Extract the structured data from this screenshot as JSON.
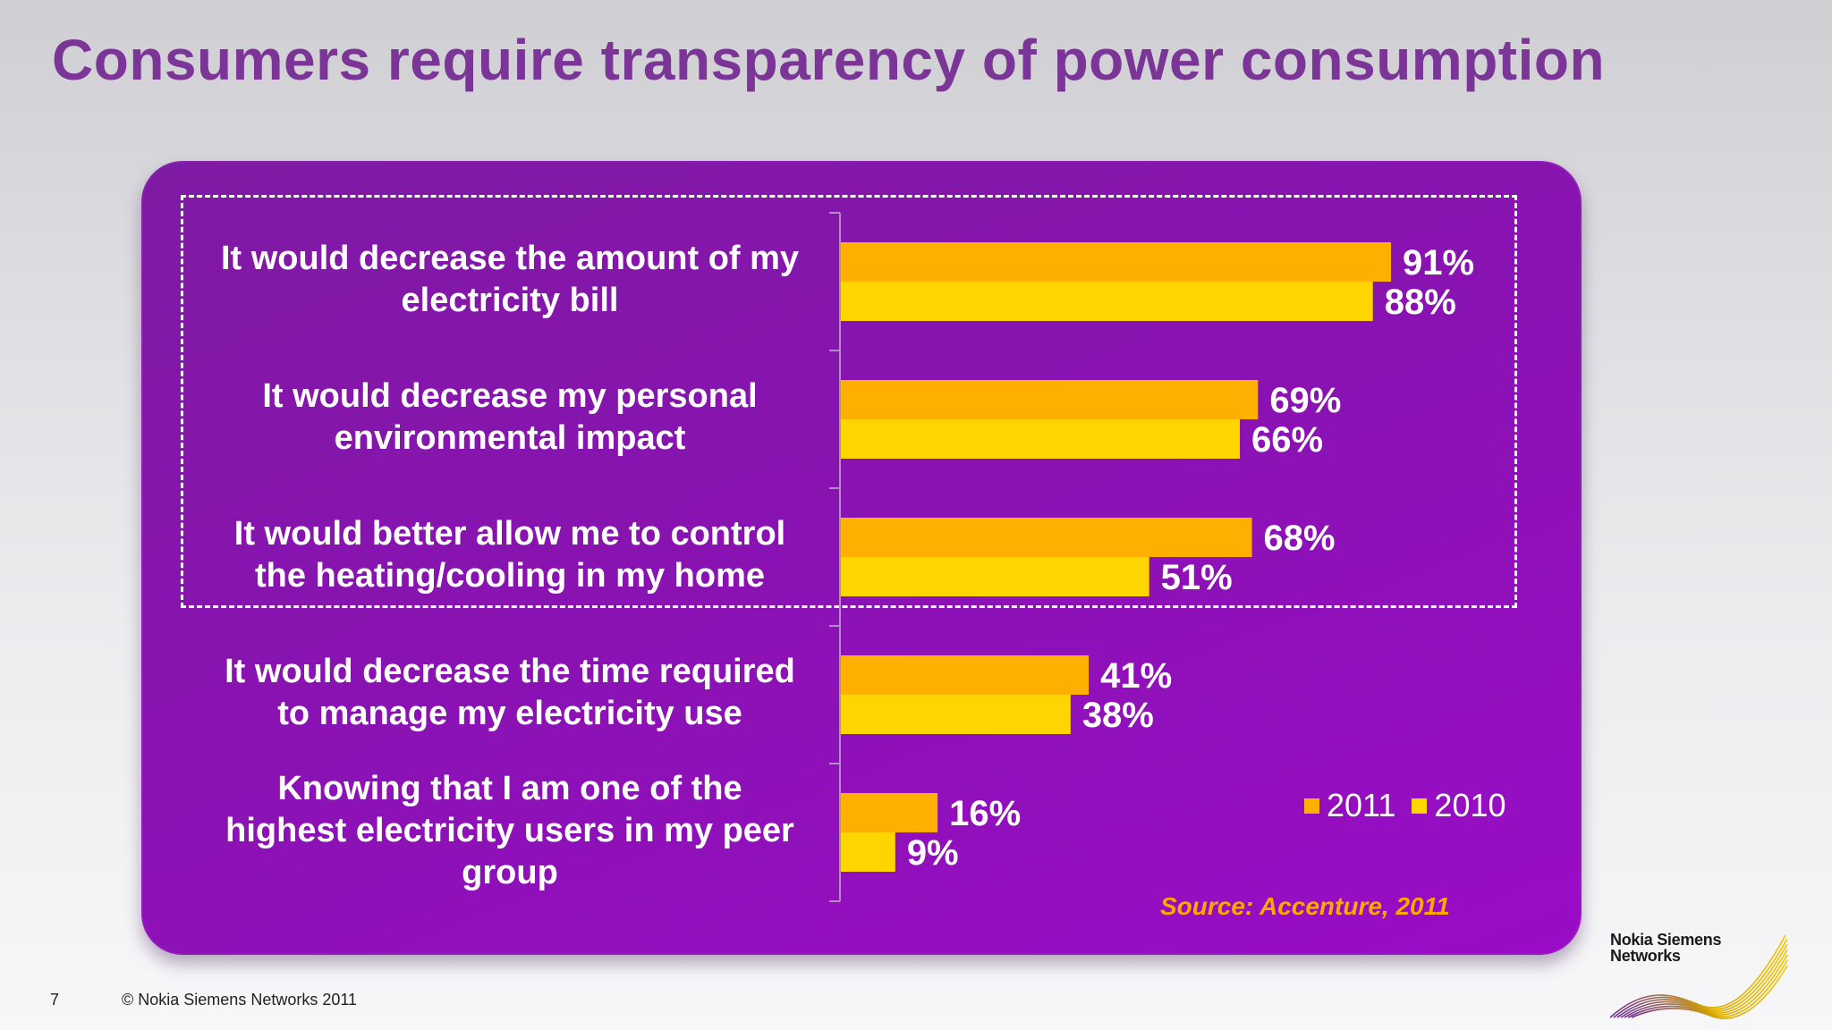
{
  "slide": {
    "title": "Consumers require transparency of power consumption",
    "page_number": "7",
    "copyright": "© Nokia Siemens Networks 2011",
    "source": "Source: Accenture, 2011",
    "logo_line1": "Nokia Siemens",
    "logo_line2": "Networks"
  },
  "colors": {
    "series_2011": "#ffaf00",
    "series_2010": "#ffd500",
    "panel": "#8a12b3",
    "title": "#7a3596",
    "source": "#ffa600"
  },
  "chart_data": {
    "type": "bar",
    "orientation": "horizontal",
    "categories": [
      "It would decrease the amount of my\nelectricity bill",
      "It would decrease my personal\nenvironmental impact",
      "It would better allow me to control\nthe heating/cooling in my home",
      "It would decrease the time required\nto manage my electricity use",
      "Knowing that I am one of the\nhighest electricity users in my peer\ngroup"
    ],
    "series": [
      {
        "name": "2011",
        "values": [
          91,
          69,
          68,
          41,
          16
        ],
        "labels": [
          "91%",
          "69%",
          "68%",
          "41%",
          "16%"
        ]
      },
      {
        "name": "2010",
        "values": [
          88,
          66,
          51,
          38,
          9
        ],
        "labels": [
          "88%",
          "66%",
          "51%",
          "38%",
          "9%"
        ]
      }
    ],
    "xlim": [
      0,
      100
    ],
    "grid": false,
    "legend_position": "bottom-right",
    "highlighted_categories": [
      0,
      1,
      2
    ]
  }
}
